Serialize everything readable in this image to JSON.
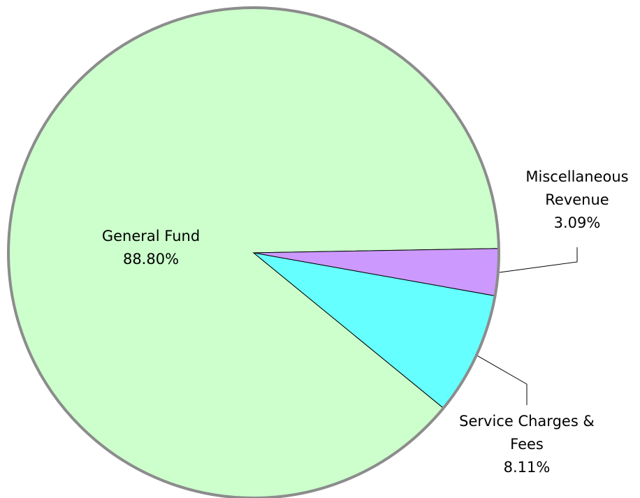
{
  "chart_data": {
    "type": "pie",
    "categories": [
      "General Fund",
      "Miscellaneous Revenue",
      "Service Charges & Fees"
    ],
    "values": [
      88.8,
      3.09,
      8.11
    ],
    "value_labels": [
      "88.80%",
      "3.09%",
      "8.11%"
    ],
    "colors": [
      "#ccffcc",
      "#cc99ff",
      "#66ffff"
    ]
  }
}
